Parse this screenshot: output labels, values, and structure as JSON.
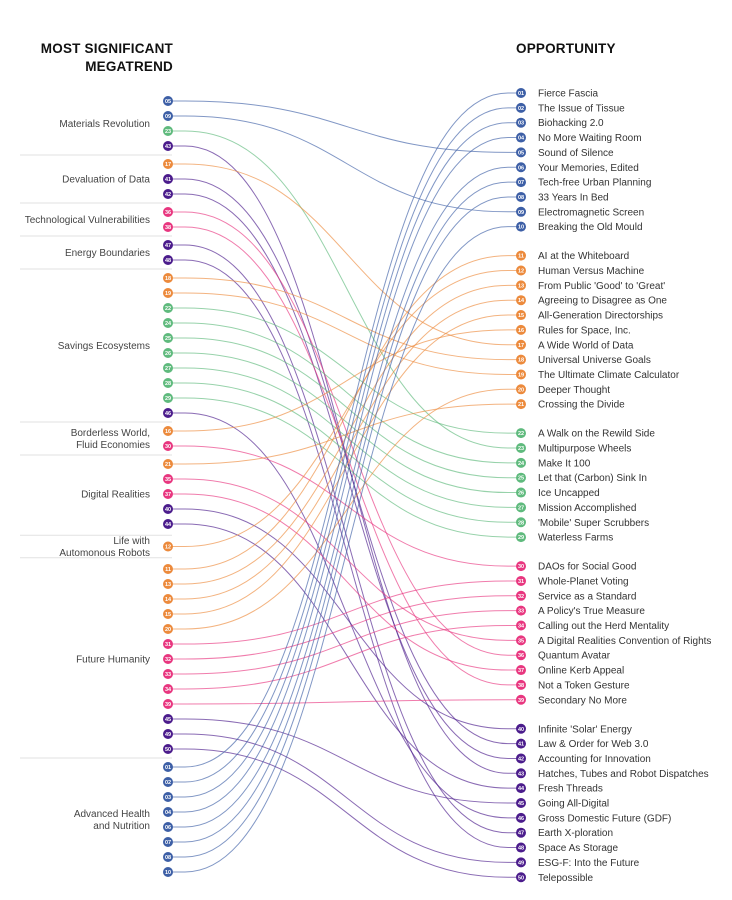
{
  "headers": {
    "left_line1": "MOST SIGNIFICANT",
    "left_line2": "MEGATREND",
    "right": "OPPORTUNITY"
  },
  "colors": {
    "blue": "#3d5fa6",
    "orange": "#ec8a3c",
    "green": "#5fba7d",
    "pink": "#e8367f",
    "purple": "#4b1c8c"
  },
  "categories": [
    {
      "color": "blue",
      "from": 1,
      "to": 10
    },
    {
      "color": "orange",
      "from": 11,
      "to": 21
    },
    {
      "color": "green",
      "from": 22,
      "to": 29
    },
    {
      "color": "pink",
      "from": 30,
      "to": 39
    },
    {
      "color": "purple",
      "from": 40,
      "to": 50
    }
  ],
  "megatrends": [
    {
      "label": [
        "Materials Revolution"
      ],
      "items": [
        "05",
        "09",
        "23",
        "43"
      ]
    },
    {
      "label": [
        "Devaluation of Data"
      ],
      "items": [
        "17",
        "41",
        "42"
      ]
    },
    {
      "label": [
        "Technological Vulnerabilities"
      ],
      "items": [
        "36",
        "38"
      ]
    },
    {
      "label": [
        "Energy Boundaries"
      ],
      "items": [
        "47",
        "48"
      ]
    },
    {
      "label": [
        "Savings Ecosystems"
      ],
      "items": [
        "18",
        "19",
        "22",
        "24",
        "25",
        "26",
        "27",
        "28",
        "29",
        "46"
      ]
    },
    {
      "label": [
        "Borderless World,",
        "Fluid Economies"
      ],
      "items": [
        "16",
        "30"
      ]
    },
    {
      "label": [
        "Digital Realities"
      ],
      "items": [
        "21",
        "35",
        "37",
        "40",
        "44"
      ]
    },
    {
      "label": [
        "Life with",
        "Automonous Robots"
      ],
      "items": [
        "12"
      ]
    },
    {
      "label": [
        "Future Humanity"
      ],
      "items": [
        "11",
        "13",
        "14",
        "15",
        "20",
        "31",
        "32",
        "33",
        "34",
        "39",
        "45",
        "49",
        "50"
      ]
    },
    {
      "label": [
        "Advanced Health",
        "and Nutrition"
      ],
      "items": [
        "01",
        "02",
        "03",
        "04",
        "06",
        "07",
        "08",
        "10"
      ]
    }
  ],
  "opportunities": [
    {
      "num": "01",
      "label": "Fierce Fascia"
    },
    {
      "num": "02",
      "label": "The Issue of Tissue"
    },
    {
      "num": "03",
      "label": "Biohacking 2.0"
    },
    {
      "num": "04",
      "label": "No More Waiting Room"
    },
    {
      "num": "05",
      "label": "Sound of Silence"
    },
    {
      "num": "06",
      "label": "Your Memories, Edited"
    },
    {
      "num": "07",
      "label": "Tech-free Urban Planning"
    },
    {
      "num": "08",
      "label": "33 Years In Bed"
    },
    {
      "num": "09",
      "label": "Electromagnetic Screen"
    },
    {
      "num": "10",
      "label": "Breaking the Old Mould"
    },
    {
      "num": "11",
      "label": "AI at the Whiteboard"
    },
    {
      "num": "12",
      "label": "Human Versus Machine"
    },
    {
      "num": "13",
      "label": "From Public 'Good' to 'Great'"
    },
    {
      "num": "14",
      "label": "Agreeing to Disagree as One"
    },
    {
      "num": "15",
      "label": "All-Generation Directorships"
    },
    {
      "num": "16",
      "label": "Rules for Space, Inc."
    },
    {
      "num": "17",
      "label": "A Wide World of Data"
    },
    {
      "num": "18",
      "label": "Universal Universe Goals"
    },
    {
      "num": "19",
      "label": "The Ultimate Climate Calculator"
    },
    {
      "num": "20",
      "label": "Deeper Thought"
    },
    {
      "num": "21",
      "label": "Crossing the Divide"
    },
    {
      "num": "22",
      "label": "A Walk on the Rewild Side"
    },
    {
      "num": "23",
      "label": "Multipurpose Wheels"
    },
    {
      "num": "24",
      "label": "Make It 100"
    },
    {
      "num": "25",
      "label": "Let that (Carbon) Sink In"
    },
    {
      "num": "26",
      "label": "Ice Uncapped"
    },
    {
      "num": "27",
      "label": "Mission Accomplished"
    },
    {
      "num": "28",
      "label": "'Mobile' Super Scrubbers"
    },
    {
      "num": "29",
      "label": "Waterless Farms"
    },
    {
      "num": "30",
      "label": "DAOs for Social Good"
    },
    {
      "num": "31",
      "label": "Whole-Planet Voting"
    },
    {
      "num": "32",
      "label": "Service as a Standard"
    },
    {
      "num": "33",
      "label": "A Policy's True Measure"
    },
    {
      "num": "34",
      "label": "Calling out the Herd Mentality"
    },
    {
      "num": "35",
      "label": "A Digital Realities Convention of Rights"
    },
    {
      "num": "36",
      "label": "Quantum Avatar"
    },
    {
      "num": "37",
      "label": "Online Kerb Appeal"
    },
    {
      "num": "38",
      "label": "Not a Token Gesture"
    },
    {
      "num": "39",
      "label": "Secondary No More"
    },
    {
      "num": "40",
      "label": "Infinite 'Solar' Energy"
    },
    {
      "num": "41",
      "label": "Law & Order for Web 3.0"
    },
    {
      "num": "42",
      "label": "Accounting for Innovation"
    },
    {
      "num": "43",
      "label": "Hatches, Tubes and Robot Dispatches"
    },
    {
      "num": "44",
      "label": "Fresh Threads"
    },
    {
      "num": "45",
      "label": "Going All-Digital"
    },
    {
      "num": "46",
      "label": "Gross Domestic Future (GDF)"
    },
    {
      "num": "47",
      "label": "Earth X-ploration"
    },
    {
      "num": "48",
      "label": "Space As Storage"
    },
    {
      "num": "49",
      "label": "ESG-F: Into the Future"
    },
    {
      "num": "50",
      "label": "Telepossible"
    }
  ]
}
